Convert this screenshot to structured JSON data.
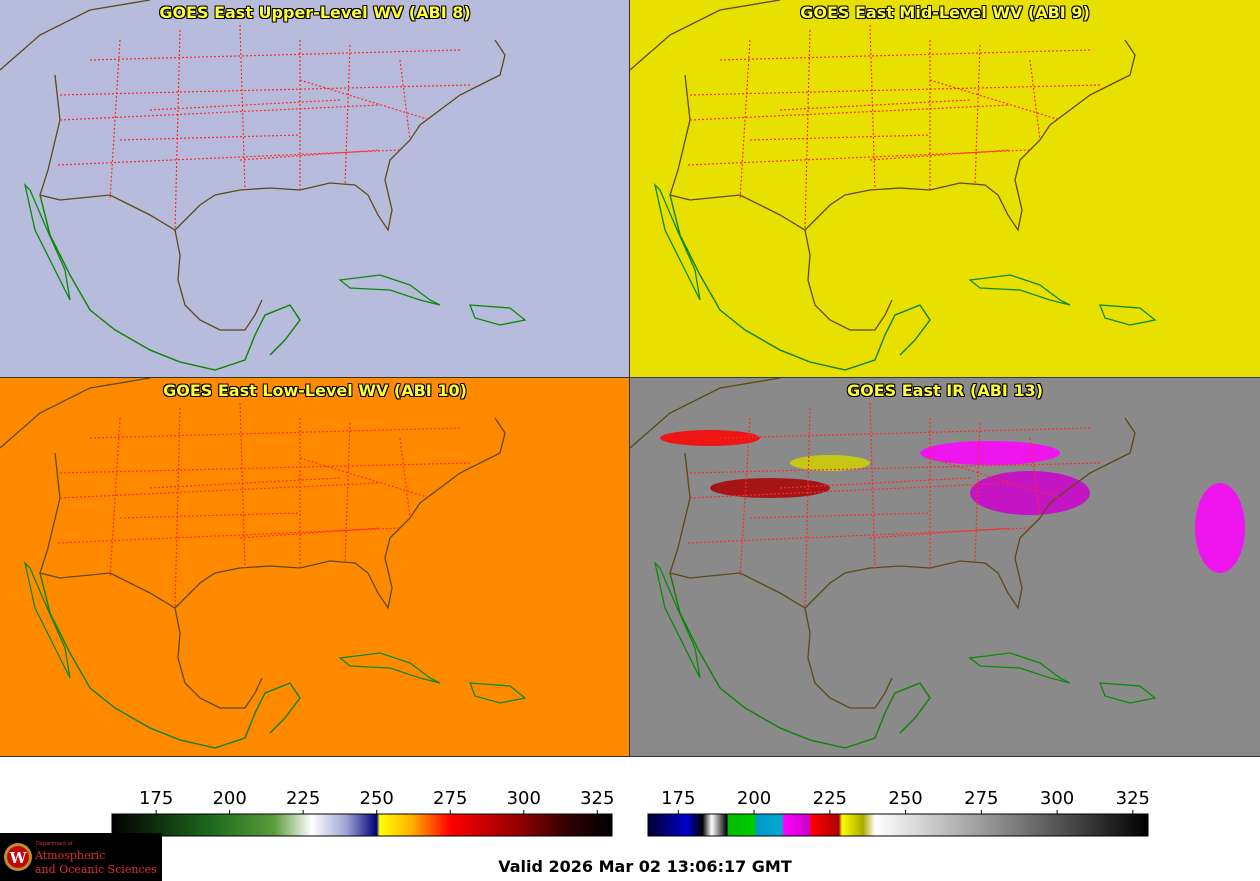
{
  "panels": [
    {
      "id": "abi8",
      "title": "GOES East Upper-Level WV (ABI 8)",
      "palette": "wv"
    },
    {
      "id": "abi9",
      "title": "GOES East Mid-Level WV (ABI 9)",
      "palette": "wv"
    },
    {
      "id": "abi10",
      "title": "GOES East Low-Level WV (ABI 10)",
      "palette": "wv"
    },
    {
      "id": "abi13",
      "title": "GOES East IR (ABI 13)",
      "palette": "ir"
    }
  ],
  "colorbars": {
    "wv": {
      "min": 160,
      "max": 330,
      "ticks": [
        "175",
        "200",
        "225",
        "250",
        "275",
        "300",
        "325"
      ],
      "stops": [
        {
          "t": 160,
          "color": "#000000"
        },
        {
          "t": 195,
          "color": "#1f6e1f"
        },
        {
          "t": 215,
          "color": "#5a9a3a"
        },
        {
          "t": 228,
          "color": "#ffffff"
        },
        {
          "t": 240,
          "color": "#9aa0d0"
        },
        {
          "t": 250,
          "color": "#00007a"
        },
        {
          "t": 251,
          "color": "#ffff00"
        },
        {
          "t": 262,
          "color": "#ffb000"
        },
        {
          "t": 275,
          "color": "#ff0000"
        },
        {
          "t": 300,
          "color": "#8a0000"
        },
        {
          "t": 315,
          "color": "#300000"
        },
        {
          "t": 330,
          "color": "#000000"
        }
      ]
    },
    "ir": {
      "min": 165,
      "max": 330,
      "ticks": [
        "175",
        "200",
        "225",
        "250",
        "275",
        "300",
        "325"
      ],
      "stops": [
        {
          "t": 165,
          "color": "#000033"
        },
        {
          "t": 178,
          "color": "#0000cc"
        },
        {
          "t": 183,
          "color": "#000000"
        },
        {
          "t": 186,
          "color": "#ffffff"
        },
        {
          "t": 191,
          "color": "#000000"
        },
        {
          "t": 191.5,
          "color": "#00bb00"
        },
        {
          "t": 200,
          "color": "#00cc00"
        },
        {
          "t": 201,
          "color": "#0099cc"
        },
        {
          "t": 209,
          "color": "#00aacc"
        },
        {
          "t": 210,
          "color": "#ff00ff"
        },
        {
          "t": 218,
          "color": "#cc00cc"
        },
        {
          "t": 219,
          "color": "#ff0000"
        },
        {
          "t": 228,
          "color": "#aa0000"
        },
        {
          "t": 229,
          "color": "#ffff00"
        },
        {
          "t": 236,
          "color": "#aaaa00"
        },
        {
          "t": 240,
          "color": "#ffffff"
        },
        {
          "t": 330,
          "color": "#000000"
        }
      ]
    }
  },
  "valid_time": "Valid 2026 Mar 02 13:06:17 GMT",
  "logo": {
    "department": "Department of",
    "line1": "Atmospheric",
    "line2": "and Oceanic Sciences",
    "crest_letter": "W"
  }
}
